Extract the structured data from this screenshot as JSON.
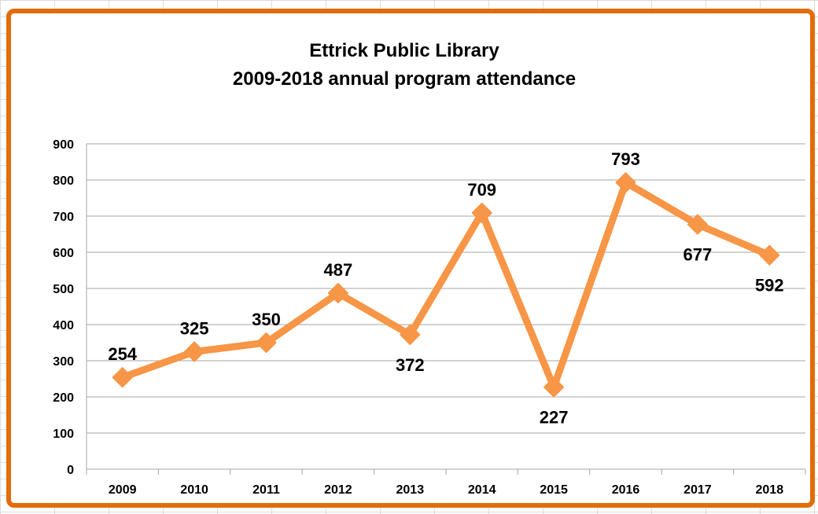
{
  "chart_data": {
    "type": "line",
    "title": "Ettrick Public Library",
    "subtitle": "2009-2018 annual program attendance",
    "categories": [
      "2009",
      "2010",
      "2011",
      "2012",
      "2013",
      "2014",
      "2015",
      "2016",
      "2017",
      "2018"
    ],
    "series": [
      {
        "values": [
          254,
          325,
          350,
          487,
          372,
          709,
          227,
          793,
          677,
          592
        ],
        "color": "#F79646",
        "marker": "diamond"
      }
    ],
    "ylim": [
      0,
      900
    ],
    "yticks": [
      0,
      100,
      200,
      300,
      400,
      500,
      600,
      700,
      800,
      900
    ],
    "grid": true,
    "legend": "none",
    "label_placement": [
      "above",
      "above",
      "above",
      "above",
      "below",
      "above",
      "below",
      "above",
      "below",
      "below"
    ],
    "frame_color": "#E36C09"
  }
}
